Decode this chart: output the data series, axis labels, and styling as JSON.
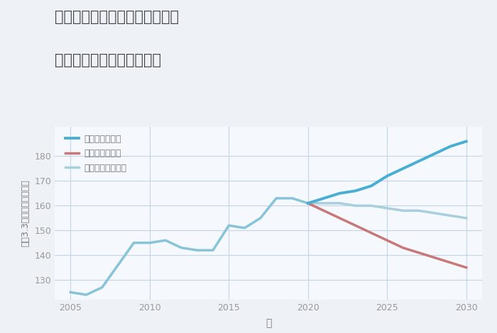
{
  "title_line1": "神奈川県横浜市緑区西八朔町の",
  "title_line2": "中古マンションの価格推移",
  "xlabel": "年",
  "ylabel": "坪（3.3㎡）単価（万円）",
  "background_color": "#eef2f7",
  "plot_background": "#f5f8fc",
  "grid_color": "#c5d5e8",
  "years_historical": [
    2005,
    2006,
    2007,
    2008,
    2009,
    2010,
    2011,
    2012,
    2013,
    2014,
    2015,
    2016,
    2017,
    2018,
    2019,
    2020
  ],
  "values_historical": [
    125,
    124,
    127,
    136,
    145,
    145,
    146,
    143,
    142,
    142,
    152,
    151,
    155,
    163,
    163,
    161
  ],
  "years_good": [
    2020,
    2021,
    2022,
    2023,
    2024,
    2025,
    2026,
    2027,
    2028,
    2029,
    2030
  ],
  "values_good": [
    161,
    163,
    165,
    166,
    168,
    172,
    175,
    178,
    181,
    184,
    186
  ],
  "years_bad": [
    2020,
    2021,
    2022,
    2023,
    2024,
    2025,
    2026,
    2027,
    2028,
    2029,
    2030
  ],
  "values_bad": [
    161,
    158,
    155,
    152,
    149,
    146,
    143,
    141,
    139,
    137,
    135
  ],
  "years_normal": [
    2020,
    2021,
    2022,
    2023,
    2024,
    2025,
    2026,
    2027,
    2028,
    2029,
    2030
  ],
  "values_normal": [
    161,
    161,
    161,
    160,
    160,
    159,
    158,
    158,
    157,
    156,
    155
  ],
  "color_good": "#4aaed4",
  "color_bad": "#c87878",
  "color_historical": "#88c4d8",
  "color_normal": "#a8d0dc",
  "legend_good": "グッドシナリオ",
  "legend_bad": "バッドシナリオ",
  "legend_normal": "ノーマルシナリオ",
  "ylim": [
    122,
    192
  ],
  "yticks": [
    130,
    140,
    150,
    160,
    170,
    180
  ],
  "xticks": [
    2005,
    2010,
    2015,
    2020,
    2025,
    2030
  ],
  "title_color": "#444444",
  "label_color": "#777777",
  "tick_color": "#999999"
}
